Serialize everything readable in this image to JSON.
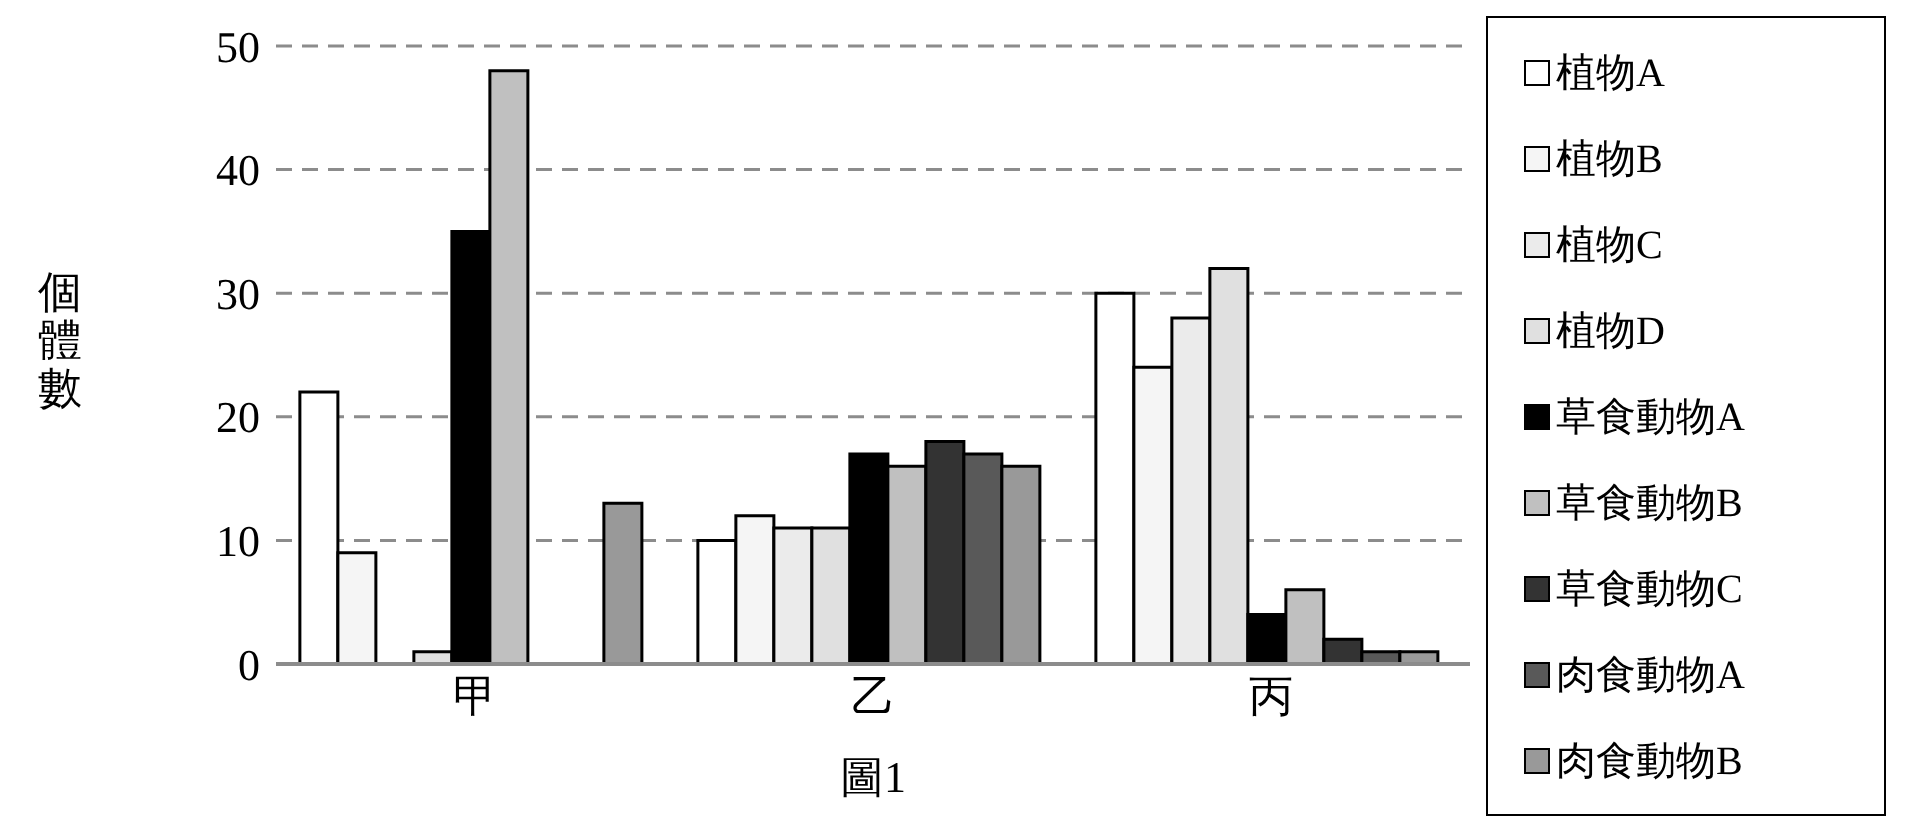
{
  "chart_data": {
    "type": "bar",
    "ylabel": "個體數",
    "annotations": [
      "圖1"
    ],
    "categories": [
      "甲",
      "乙",
      "丙"
    ],
    "series": [
      {
        "name": "植物A",
        "color": "#ffffff",
        "values": [
          22,
          10,
          30
        ]
      },
      {
        "name": "植物B",
        "color": "#f5f5f5",
        "values": [
          9,
          12,
          24
        ]
      },
      {
        "name": "植物C",
        "color": "#ebebeb",
        "values": [
          0,
          11,
          28
        ]
      },
      {
        "name": "植物D",
        "color": "#e0e0e0",
        "values": [
          1,
          11,
          32
        ]
      },
      {
        "name": "草食動物A",
        "color": "#000000",
        "values": [
          35,
          17,
          4
        ]
      },
      {
        "name": "草食動物B",
        "color": "#c0c0c0",
        "values": [
          48,
          16,
          6
        ]
      },
      {
        "name": "草食動物C",
        "color": "#333333",
        "values": [
          0,
          18,
          2
        ]
      },
      {
        "name": "肉食動物A",
        "color": "#595959",
        "values": [
          0,
          17,
          1
        ]
      },
      {
        "name": "肉食動物B",
        "color": "#999999",
        "values": [
          13,
          16,
          1
        ]
      }
    ],
    "ylim": [
      0,
      50
    ],
    "yticks": [
      0,
      10,
      20,
      30,
      40,
      50
    ],
    "grid": "y",
    "legend": "right"
  }
}
